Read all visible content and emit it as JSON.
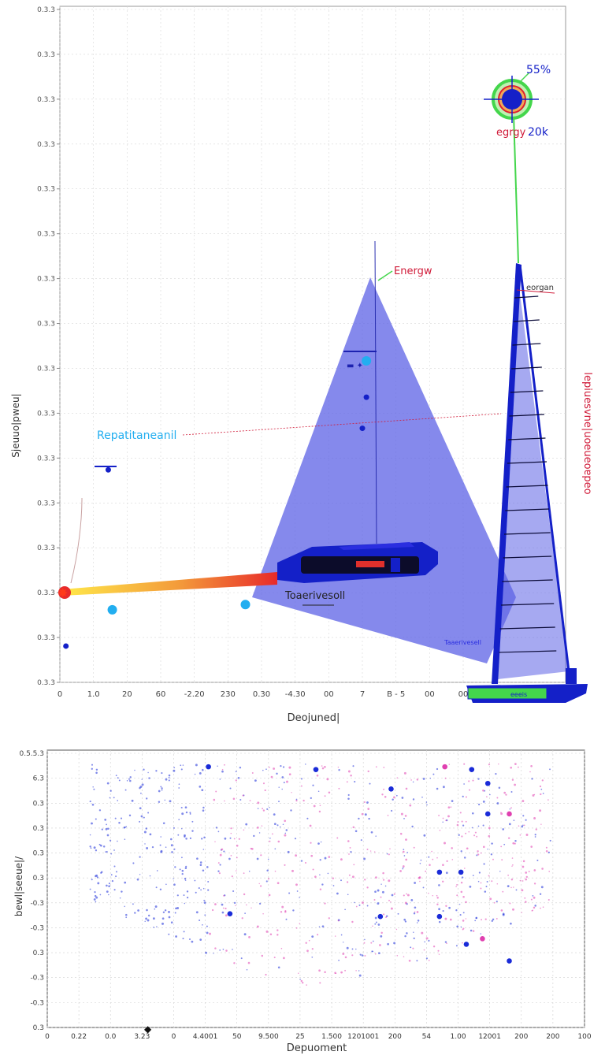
{
  "chart_data": [
    {
      "type": "scatter",
      "xlabel": "Deojuned|",
      "ylabel": "Sjeuuo|pweu|",
      "right_label": "lepiuesvne|uoeueoɐpeo",
      "y_ticks": [
        "0.3.3",
        "0.3.3",
        "0.3.3",
        "0.3.3",
        "0.3.3",
        "0.3.3",
        "0.3.3",
        "0.3.3",
        "0.3.3",
        "0.3.3",
        "0.3.3",
        "0.3.3",
        "0.3.3",
        "0.3.3",
        "0.3.3",
        "0.3.3"
      ],
      "x_ticks": [
        "0",
        "1.0",
        "20",
        "60",
        "-2.20",
        "230",
        "0.30",
        "-4.30",
        "00",
        "7",
        "B - 5",
        "00",
        "00"
      ],
      "annotations": {
        "top_pct": "55%",
        "top_energy": "egrgy",
        "top_value": "20k",
        "energy_label": "Energw",
        "sail_label": "eorgan",
        "left_label": "Repatitaneanil",
        "rocket_label": "Toaerivesoll",
        "keel_label": "Taaerivesell",
        "hull_label": "eeeis"
      },
      "points": [
        {
          "x": 7.6,
          "y": 0.62,
          "kind": "cyan"
        },
        {
          "x": 1.2,
          "y": 0.41,
          "kind": "blue"
        },
        {
          "x": 1.3,
          "y": 0.14,
          "kind": "cyan"
        },
        {
          "x": 0.15,
          "y": 0.07,
          "kind": "blue"
        },
        {
          "x": 4.6,
          "y": 0.15,
          "kind": "cyan"
        },
        {
          "x": 7.6,
          "y": 0.55,
          "kind": "blue"
        },
        {
          "x": 7.5,
          "y": 0.49,
          "kind": "blue"
        }
      ],
      "grid": true,
      "colors": {
        "fill": "#5c62e6",
        "blue": "#1420c8",
        "cyan": "#22aef0",
        "green": "#44d64c",
        "red": "#e0202c"
      }
    },
    {
      "type": "scatter",
      "xlabel": "Depuoment",
      "ylabel": "bewl|seeue|/",
      "y_ticks": [
        "0.5.5.3",
        "6.3",
        "0.3",
        "0.3",
        "0.3",
        "0.3",
        "-0.3",
        "-0.3",
        "0.3",
        "-0.3",
        "-0.3",
        "0.3"
      ],
      "x_ticks": [
        "0",
        "0.22",
        "0.0",
        "3.23",
        "0",
        "4.4001",
        "50",
        "9.500",
        "25",
        "1.500",
        "1201001",
        "200",
        "54",
        "1.00",
        "12001",
        "200",
        "200",
        "100"
      ],
      "series": [
        {
          "name": "",
          "color": "#1a2bd8"
        },
        {
          "name": "",
          "color": "#e040b0"
        }
      ],
      "marked_points": [
        {
          "x": 0.3,
          "y": 0.94
        },
        {
          "x": 0.5,
          "y": 0.93
        },
        {
          "x": 0.74,
          "y": 0.94
        },
        {
          "x": 0.79,
          "y": 0.93
        },
        {
          "x": 0.82,
          "y": 0.88
        },
        {
          "x": 0.64,
          "y": 0.86
        },
        {
          "x": 0.82,
          "y": 0.77
        },
        {
          "x": 0.86,
          "y": 0.77
        },
        {
          "x": 0.73,
          "y": 0.56
        },
        {
          "x": 0.77,
          "y": 0.56
        },
        {
          "x": 0.62,
          "y": 0.4
        },
        {
          "x": 0.73,
          "y": 0.4
        },
        {
          "x": 0.81,
          "y": 0.32
        },
        {
          "x": 0.78,
          "y": 0.3
        },
        {
          "x": 0.34,
          "y": 0.41
        },
        {
          "x": 0.86,
          "y": 0.24
        }
      ],
      "grid": true
    }
  ]
}
